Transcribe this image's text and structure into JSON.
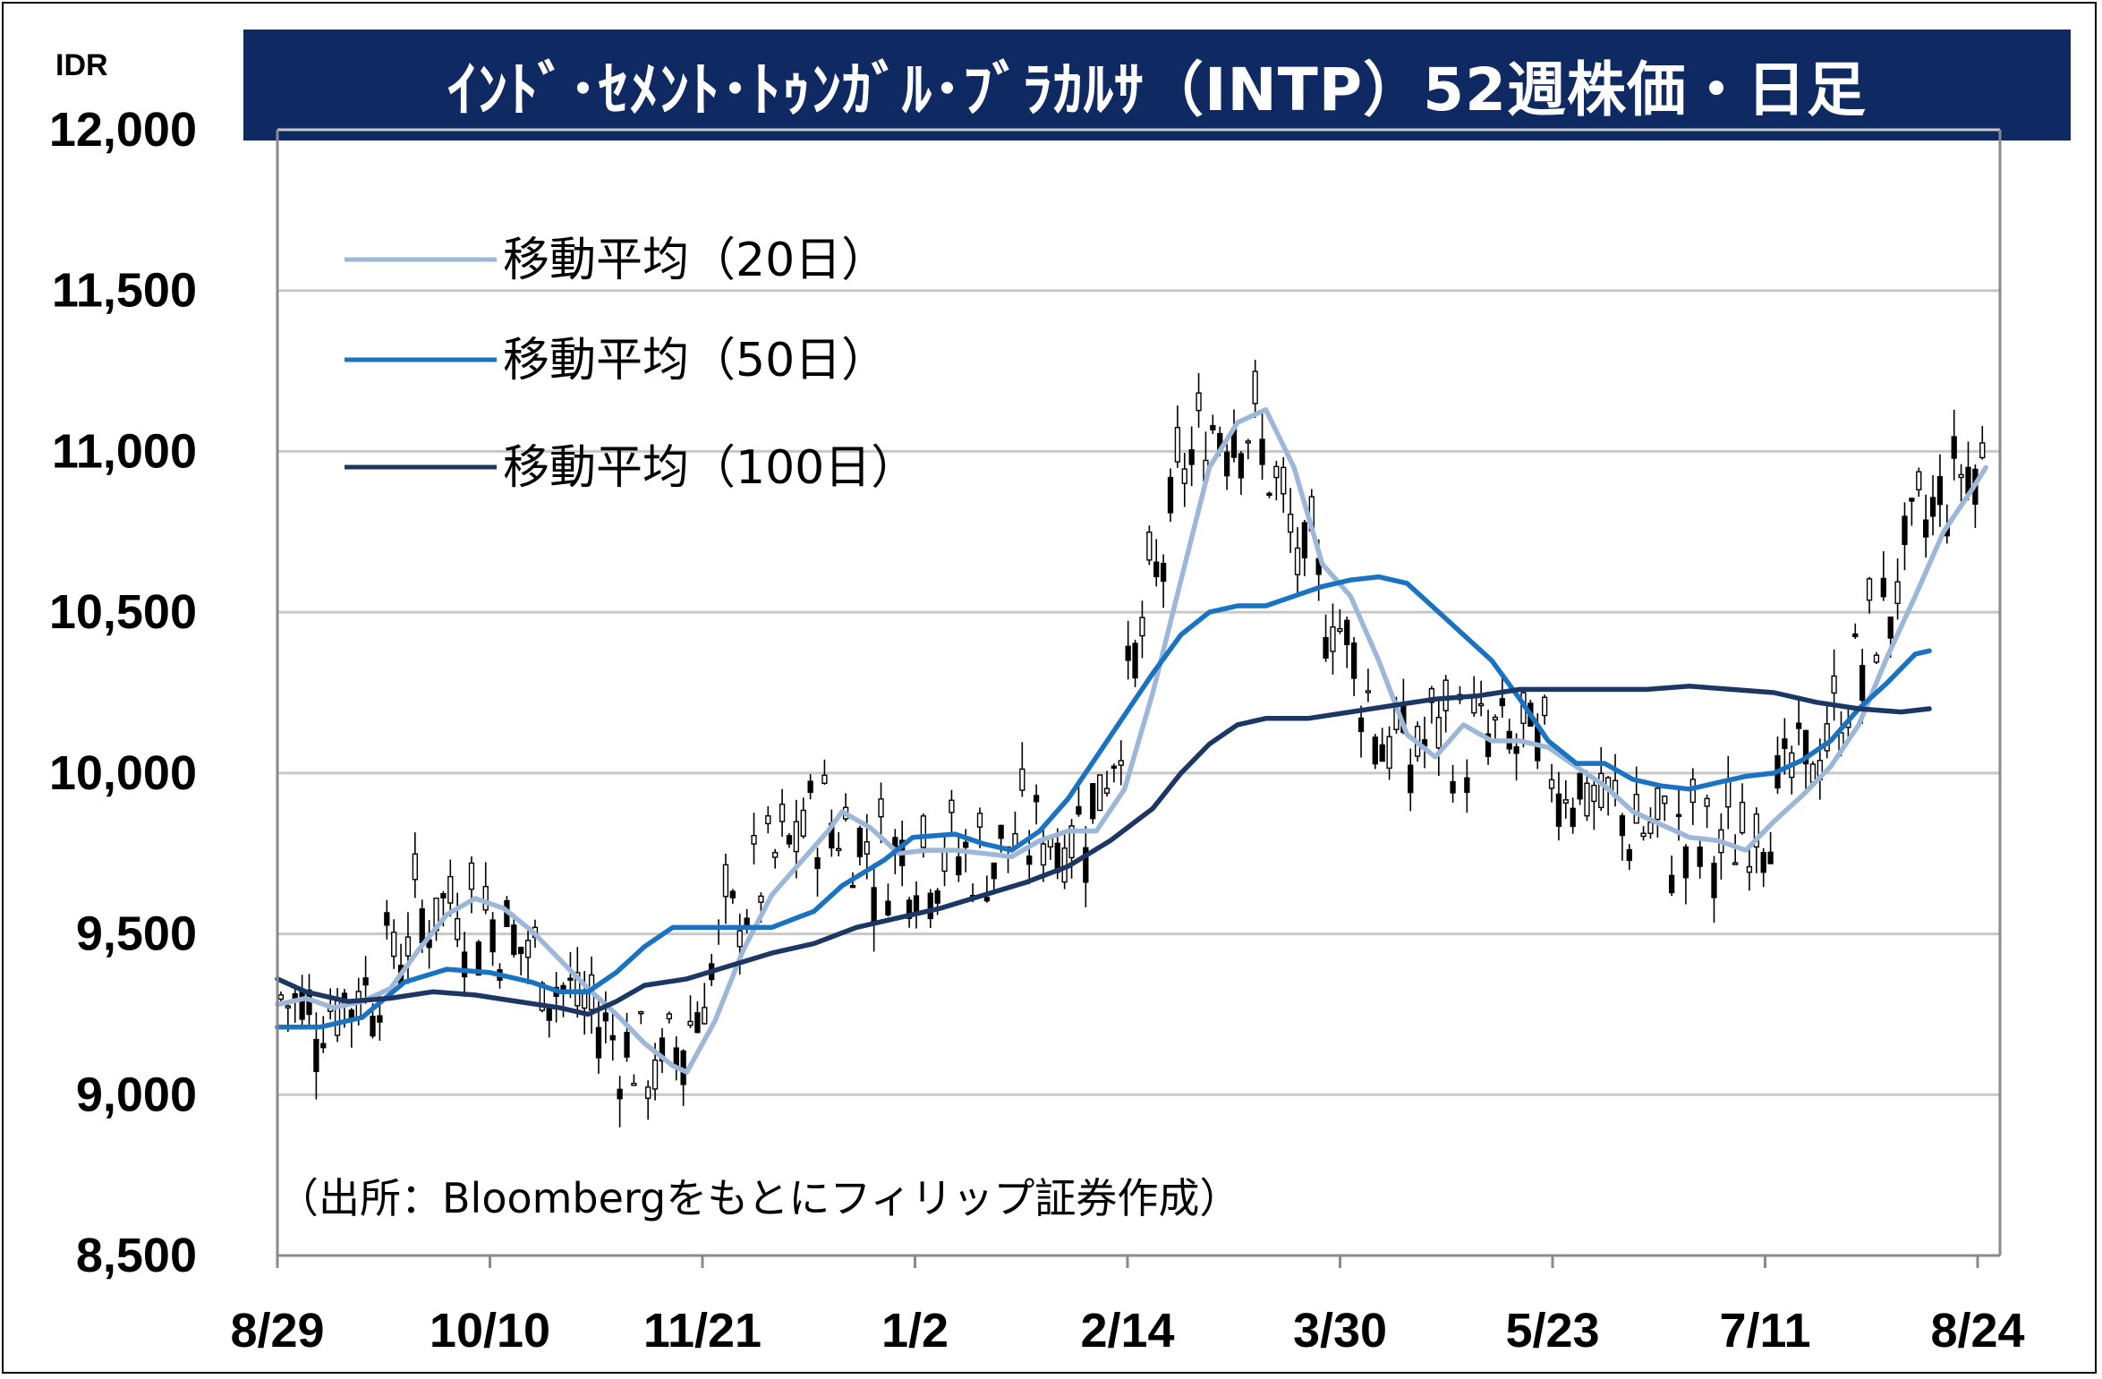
{
  "title": "ｲﾝﾄﾞ･ｾﾒﾝﾄ･ﾄｩﾝｶﾞﾙ･ﾌﾞﾗｶﾙｻ（INTP）52週株価・日足",
  "source_note": "（出所：Bloombergをもとにフィリップ証券作成）",
  "chart_data": {
    "type": "line",
    "unit_label": "IDR",
    "ylim": [
      8500,
      12000
    ],
    "y_ticks": [
      8500,
      9000,
      9500,
      10000,
      10500,
      11000,
      11500,
      12000
    ],
    "y_tick_labels": [
      "8,500",
      "9,000",
      "9,500",
      "10,000",
      "10,500",
      "11,000",
      "11,500",
      "12,000"
    ],
    "x_ticks": [
      "8/29",
      "10/10",
      "11/21",
      "1/2",
      "2/14",
      "3/30",
      "5/23",
      "7/11",
      "8/24"
    ],
    "grid": true,
    "legend_position": "top-left",
    "colors": {
      "ma20": "#9db7d9",
      "ma50": "#1a73c2",
      "ma100": "#1c3764",
      "candle": "#000000",
      "grid": "#c8c8c8",
      "title_bg": "#0f2a63"
    },
    "series": [
      {
        "name": "移動平均（20日）",
        "key": "ma20",
        "points": [
          [
            0,
            9280
          ],
          [
            4,
            9300
          ],
          [
            8,
            9270
          ],
          [
            12,
            9290
          ],
          [
            16,
            9330
          ],
          [
            20,
            9450
          ],
          [
            24,
            9560
          ],
          [
            28,
            9610
          ],
          [
            32,
            9580
          ],
          [
            36,
            9510
          ],
          [
            40,
            9420
          ],
          [
            44,
            9330
          ],
          [
            48,
            9250
          ],
          [
            52,
            9160
          ],
          [
            56,
            9090
          ],
          [
            58,
            9070
          ],
          [
            62,
            9230
          ],
          [
            66,
            9450
          ],
          [
            70,
            9620
          ],
          [
            74,
            9720
          ],
          [
            78,
            9820
          ],
          [
            80,
            9880
          ],
          [
            84,
            9830
          ],
          [
            88,
            9750
          ],
          [
            92,
            9760
          ],
          [
            96,
            9760
          ],
          [
            100,
            9750
          ],
          [
            104,
            9740
          ],
          [
            108,
            9790
          ],
          [
            112,
            9820
          ],
          [
            116,
            9820
          ],
          [
            120,
            9950
          ],
          [
            124,
            10250
          ],
          [
            128,
            10600
          ],
          [
            132,
            10950
          ],
          [
            136,
            11090
          ],
          [
            140,
            11130
          ],
          [
            144,
            10950
          ],
          [
            148,
            10650
          ],
          [
            152,
            10550
          ],
          [
            156,
            10350
          ],
          [
            160,
            10120
          ],
          [
            164,
            10050
          ],
          [
            168,
            10150
          ],
          [
            172,
            10100
          ],
          [
            176,
            10100
          ],
          [
            180,
            10080
          ],
          [
            184,
            10020
          ],
          [
            188,
            9960
          ],
          [
            192,
            9880
          ],
          [
            196,
            9840
          ],
          [
            200,
            9800
          ],
          [
            204,
            9790
          ],
          [
            208,
            9760
          ],
          [
            212,
            9850
          ],
          [
            216,
            9930
          ],
          [
            220,
            10020
          ],
          [
            224,
            10150
          ],
          [
            228,
            10360
          ],
          [
            232,
            10550
          ],
          [
            236,
            10750
          ],
          [
            240,
            10880
          ],
          [
            242,
            10950
          ]
        ]
      },
      {
        "name": "移動平均（50日）",
        "key": "ma50",
        "points": [
          [
            0,
            9210
          ],
          [
            6,
            9210
          ],
          [
            12,
            9240
          ],
          [
            18,
            9350
          ],
          [
            24,
            9390
          ],
          [
            30,
            9380
          ],
          [
            36,
            9350
          ],
          [
            40,
            9320
          ],
          [
            44,
            9320
          ],
          [
            48,
            9380
          ],
          [
            52,
            9460
          ],
          [
            56,
            9520
          ],
          [
            62,
            9520
          ],
          [
            70,
            9520
          ],
          [
            76,
            9570
          ],
          [
            80,
            9650
          ],
          [
            86,
            9730
          ],
          [
            90,
            9800
          ],
          [
            96,
            9810
          ],
          [
            100,
            9780
          ],
          [
            104,
            9760
          ],
          [
            108,
            9820
          ],
          [
            112,
            9920
          ],
          [
            116,
            10050
          ],
          [
            120,
            10180
          ],
          [
            124,
            10310
          ],
          [
            128,
            10430
          ],
          [
            132,
            10500
          ],
          [
            136,
            10520
          ],
          [
            140,
            10520
          ],
          [
            144,
            10550
          ],
          [
            148,
            10580
          ],
          [
            152,
            10600
          ],
          [
            156,
            10610
          ],
          [
            160,
            10590
          ],
          [
            164,
            10510
          ],
          [
            168,
            10430
          ],
          [
            172,
            10350
          ],
          [
            176,
            10230
          ],
          [
            180,
            10100
          ],
          [
            184,
            10030
          ],
          [
            188,
            10030
          ],
          [
            192,
            9980
          ],
          [
            196,
            9960
          ],
          [
            200,
            9950
          ],
          [
            204,
            9970
          ],
          [
            208,
            9990
          ],
          [
            212,
            10000
          ],
          [
            216,
            10040
          ],
          [
            220,
            10100
          ],
          [
            224,
            10200
          ],
          [
            228,
            10280
          ],
          [
            232,
            10370
          ],
          [
            234,
            10380
          ]
        ]
      },
      {
        "name": "移動平均（100日）",
        "key": "ma100",
        "points": [
          [
            0,
            9360
          ],
          [
            4,
            9320
          ],
          [
            10,
            9290
          ],
          [
            16,
            9300
          ],
          [
            22,
            9320
          ],
          [
            28,
            9310
          ],
          [
            34,
            9290
          ],
          [
            40,
            9270
          ],
          [
            44,
            9250
          ],
          [
            48,
            9290
          ],
          [
            52,
            9340
          ],
          [
            58,
            9360
          ],
          [
            64,
            9400
          ],
          [
            70,
            9440
          ],
          [
            76,
            9470
          ],
          [
            82,
            9520
          ],
          [
            88,
            9550
          ],
          [
            94,
            9580
          ],
          [
            100,
            9620
          ],
          [
            106,
            9660
          ],
          [
            112,
            9710
          ],
          [
            118,
            9790
          ],
          [
            124,
            9890
          ],
          [
            128,
            10000
          ],
          [
            132,
            10090
          ],
          [
            136,
            10150
          ],
          [
            140,
            10170
          ],
          [
            146,
            10170
          ],
          [
            152,
            10190
          ],
          [
            158,
            10210
          ],
          [
            164,
            10230
          ],
          [
            170,
            10240
          ],
          [
            176,
            10260
          ],
          [
            182,
            10260
          ],
          [
            188,
            10260
          ],
          [
            194,
            10260
          ],
          [
            200,
            10270
          ],
          [
            206,
            10260
          ],
          [
            212,
            10250
          ],
          [
            218,
            10220
          ],
          [
            224,
            10200
          ],
          [
            230,
            10190
          ],
          [
            234,
            10200
          ]
        ]
      }
    ]
  }
}
